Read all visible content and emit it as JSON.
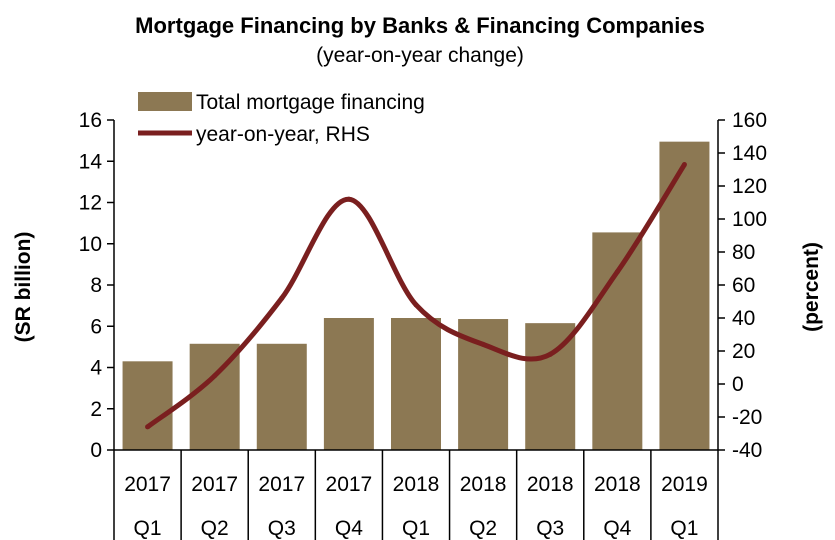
{
  "chart_data": {
    "type": "bar",
    "title": "Mortgage Financing by Banks & Financing Companies",
    "subtitle": "(year-on-year change)",
    "ylabel": "(SR billion)",
    "y2label": "(percent)",
    "ylim": [
      0,
      16
    ],
    "y2lim": [
      -40,
      160
    ],
    "yticks": [
      0,
      2,
      4,
      6,
      8,
      10,
      12,
      14,
      16
    ],
    "y2ticks": [
      -40,
      -20,
      0,
      20,
      40,
      60,
      80,
      100,
      120,
      140,
      160
    ],
    "categories": [
      {
        "year": "2017",
        "quarter": "Q1"
      },
      {
        "year": "2017",
        "quarter": "Q2"
      },
      {
        "year": "2017",
        "quarter": "Q3"
      },
      {
        "year": "2017",
        "quarter": "Q4"
      },
      {
        "year": "2018",
        "quarter": "Q1"
      },
      {
        "year": "2018",
        "quarter": "Q2"
      },
      {
        "year": "2018",
        "quarter": "Q3"
      },
      {
        "year": "2018",
        "quarter": "Q4"
      },
      {
        "year": "2019",
        "quarter": "Q1"
      }
    ],
    "series": [
      {
        "name": "Total mortgage financing",
        "kind": "bar",
        "axis": "left",
        "color": "#8c7853",
        "values": [
          4.3,
          5.15,
          5.15,
          6.4,
          6.4,
          6.35,
          6.15,
          10.55,
          14.95
        ]
      },
      {
        "name": "year-on-year, RHS",
        "kind": "line",
        "axis": "right",
        "color": "#7a1f1f",
        "values": [
          -26,
          5,
          52,
          112,
          48,
          24,
          18,
          68,
          133
        ]
      }
    ],
    "legend": "top-left",
    "grid": false
  }
}
